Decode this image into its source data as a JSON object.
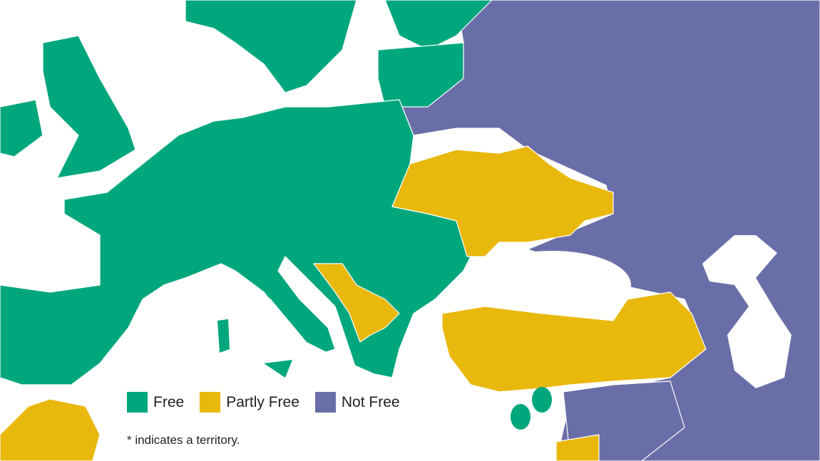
{
  "colors": {
    "free": "#00a77d",
    "partly_free": "#e8b80c",
    "not_free": "#6a6ea8",
    "sea": "#ffffff"
  },
  "legend": {
    "items": [
      {
        "label": "Free",
        "color": "#00a77d"
      },
      {
        "label": "Partly Free",
        "color": "#e8b80c"
      },
      {
        "label": "Not Free",
        "color": "#6a6ea8"
      }
    ],
    "note": "* indicates a territory."
  }
}
